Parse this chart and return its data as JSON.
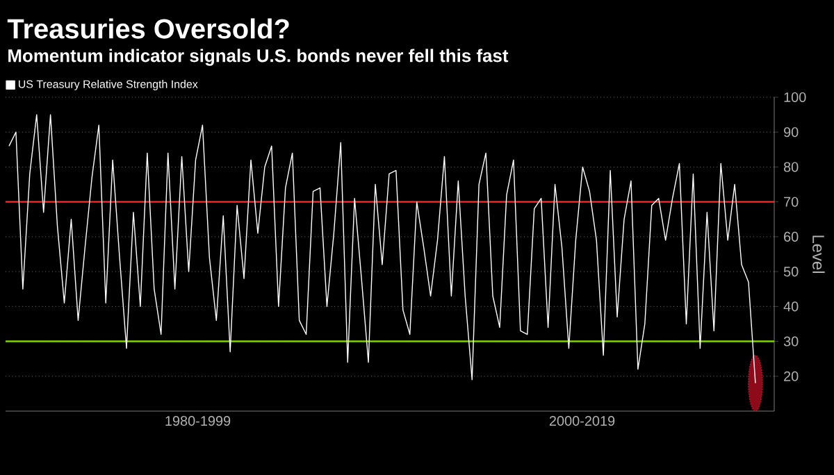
{
  "chart_data": {
    "type": "line",
    "title": "Treasuries Oversold?",
    "subtitle": "Momentum indicator signals U.S. bonds never fell this fast",
    "ylabel": "Level",
    "categories": [
      null,
      null,
      null,
      null,
      null,
      null,
      null,
      null,
      null,
      null,
      null,
      null,
      null,
      null,
      null,
      null,
      null,
      null,
      null,
      null,
      null,
      null,
      null,
      null,
      null,
      null,
      null,
      null,
      null,
      null,
      null,
      null,
      null,
      null,
      null,
      null,
      null,
      null,
      null,
      null,
      null,
      null,
      null,
      null,
      null,
      null,
      null,
      null,
      null,
      null,
      null,
      null,
      null,
      null,
      null,
      null,
      null,
      null,
      null,
      null,
      null,
      null,
      null,
      null,
      null,
      null,
      null,
      null,
      null,
      null,
      null,
      null,
      null,
      null,
      null,
      null,
      null,
      null,
      null,
      null,
      null,
      null,
      null,
      null,
      null,
      null,
      null,
      null,
      null,
      null,
      null,
      null,
      null,
      null,
      null,
      null,
      null,
      null,
      null,
      null,
      null,
      null,
      null,
      null,
      null,
      null,
      null,
      null,
      null
    ],
    "series": [
      {
        "name": "US Treasury Relative Strength Index",
        "color": "#ffffff",
        "values": [
          86,
          90,
          45,
          78,
          95,
          67,
          95,
          63,
          41,
          65,
          36,
          57,
          77,
          92,
          41,
          82,
          54,
          28,
          67,
          40,
          84,
          45,
          32,
          84,
          45,
          83,
          50,
          82,
          92,
          54,
          36,
          66,
          27,
          69,
          48,
          82,
          61,
          80,
          86,
          40,
          74,
          84,
          36,
          32,
          73,
          74,
          40,
          61,
          87,
          24,
          71,
          48,
          24,
          75,
          52,
          78,
          79,
          39,
          32,
          70,
          57,
          43,
          59,
          83,
          43,
          76,
          43,
          19,
          75,
          84,
          43,
          34,
          72,
          82,
          33,
          32,
          68,
          71,
          34,
          75,
          57,
          28,
          59,
          80,
          73,
          59,
          26,
          79,
          37,
          65,
          76,
          22,
          35,
          69,
          71,
          59,
          71,
          81,
          35,
          78,
          28,
          67,
          33,
          81,
          59,
          75,
          52,
          47,
          18
        ]
      }
    ],
    "ylim": [
      10,
      100
    ],
    "yticks": [
      20,
      30,
      40,
      50,
      60,
      70,
      80,
      90,
      100
    ],
    "grid": "y",
    "legend": "top left",
    "ref_lines": [
      {
        "axis": "y",
        "value": 70,
        "color": "#ff2a2a"
      },
      {
        "axis": "y",
        "value": 30,
        "color": "#7fd400"
      }
    ],
    "annotations": [
      "1980-1999",
      "2000-2019"
    ]
  }
}
